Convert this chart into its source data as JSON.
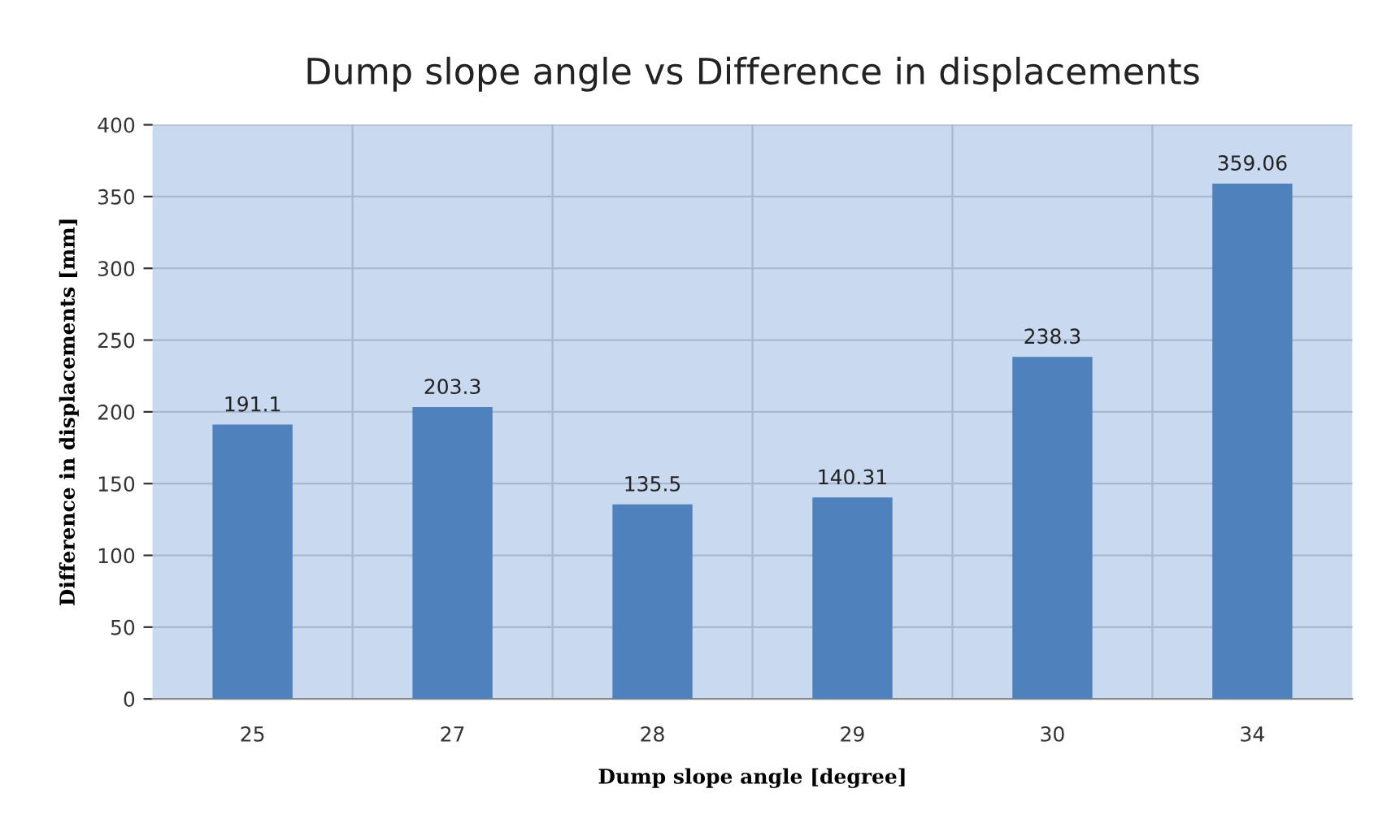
{
  "chart_data": {
    "type": "bar",
    "title": "Dump slope angle vs Difference in displacements",
    "xlabel": "Dump slope angle [degree]",
    "ylabel": "Difference in displacements [mm]",
    "categories": [
      "25",
      "27",
      "28",
      "29",
      "30",
      "34"
    ],
    "values": [
      191.1,
      203.3,
      135.5,
      140.31,
      238.3,
      359.06
    ],
    "color": "#4f81bd",
    "data_labels": true,
    "ylim": [
      0,
      400
    ],
    "yticks": [
      0,
      50,
      100,
      150,
      200,
      250,
      300,
      350,
      400
    ],
    "grid": true
  }
}
